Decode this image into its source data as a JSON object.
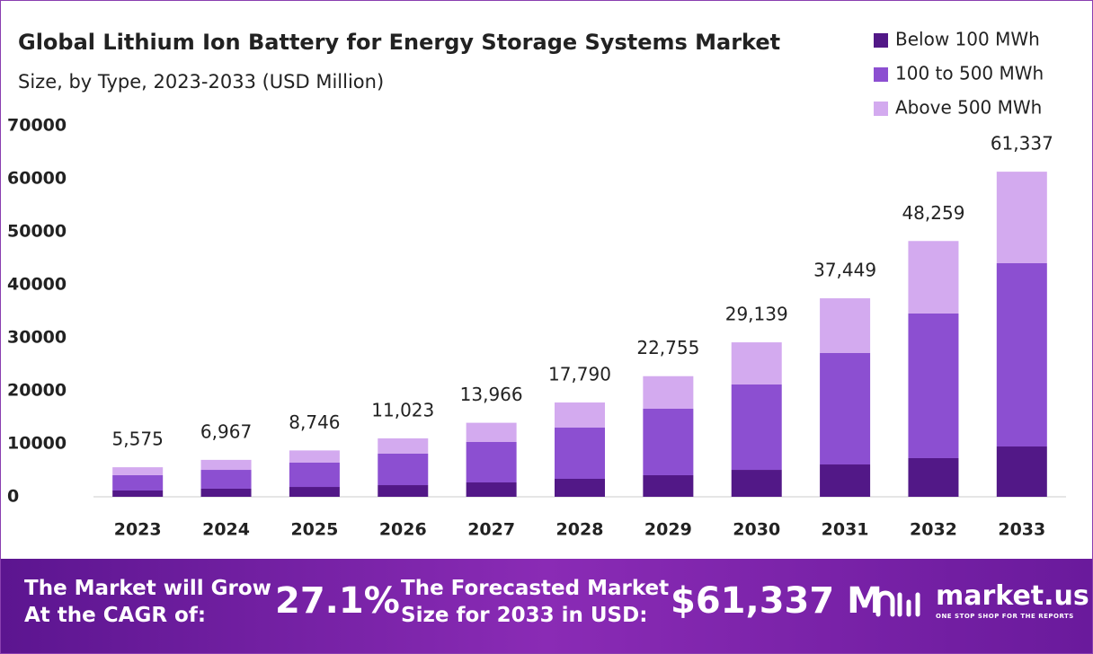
{
  "chart_data": {
    "type": "stacked-bar",
    "title": "Global Lithium Ion Battery for Energy Storage Systems Market",
    "subtitle": "Size, by Type, 2023-2033 (USD Million)",
    "categories": [
      "2023",
      "2024",
      "2025",
      "2026",
      "2027",
      "2028",
      "2029",
      "2030",
      "2031",
      "2032",
      "2033"
    ],
    "series": [
      {
        "name": "Below 100 MWh",
        "color": "#521887",
        "values": [
          1190,
          1530,
          1860,
          2200,
          2710,
          3390,
          4070,
          5080,
          6100,
          7290,
          9490
        ]
      },
      {
        "name": "100 to 500 MWh",
        "color": "#8c4fd1",
        "values": [
          2880,
          3550,
          4580,
          5940,
          7630,
          9660,
          12540,
          16110,
          21020,
          27290,
          34580
        ]
      },
      {
        "name": "Above 500 MWh",
        "color": "#d3aaef",
        "values": [
          1505,
          1887,
          2306,
          2883,
          3626,
          4740,
          6145,
          7949,
          10329,
          13679,
          17267
        ]
      }
    ],
    "totals": {
      "values": [
        5575,
        6967,
        8746,
        11023,
        13966,
        17790,
        22755,
        29139,
        37449,
        48259,
        61337
      ],
      "value_labels": [
        "5,575",
        "6,967",
        "8,746",
        "11,023",
        "13,966",
        "17,790",
        "22,755",
        "29,139",
        "37,449",
        "48,259",
        "61,337"
      ]
    },
    "ylim": [
      0,
      70000
    ],
    "yticks": [
      0,
      10000,
      20000,
      30000,
      40000,
      50000,
      60000,
      70000
    ],
    "grid": false,
    "legend": "top-right"
  },
  "footer": {
    "cagr_text": [
      "The Market will Grow",
      "At the CAGR of:"
    ],
    "cagr_value": "27.1%",
    "forecast_text": [
      "The Forecasted Market",
      "Size for 2033 in USD:"
    ],
    "forecast_value": "$61,337 M",
    "brand": "market.us",
    "tagline": "ONE STOP SHOP FOR THE REPORTS"
  }
}
